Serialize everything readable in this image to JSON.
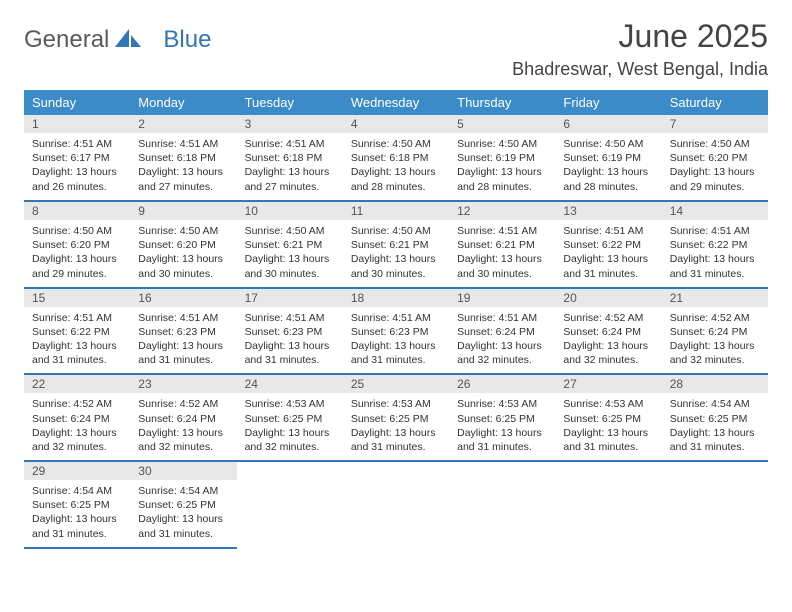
{
  "brand": {
    "part1": "General",
    "part2": "Blue"
  },
  "title": "June 2025",
  "location": "Bhadreswar, West Bengal, India",
  "colors": {
    "header_bg": "#3b8bc9",
    "header_text": "#ffffff",
    "border": "#2f77b5",
    "daynum_bg": "#e8e8e8",
    "brand_gray": "#5a5a5a",
    "brand_blue": "#2f77b5"
  },
  "weekdays": [
    "Sunday",
    "Monday",
    "Tuesday",
    "Wednesday",
    "Thursday",
    "Friday",
    "Saturday"
  ],
  "days": [
    {
      "n": 1,
      "sunrise": "4:51 AM",
      "sunset": "6:17 PM",
      "daylight": "13 hours and 26 minutes."
    },
    {
      "n": 2,
      "sunrise": "4:51 AM",
      "sunset": "6:18 PM",
      "daylight": "13 hours and 27 minutes."
    },
    {
      "n": 3,
      "sunrise": "4:51 AM",
      "sunset": "6:18 PM",
      "daylight": "13 hours and 27 minutes."
    },
    {
      "n": 4,
      "sunrise": "4:50 AM",
      "sunset": "6:18 PM",
      "daylight": "13 hours and 28 minutes."
    },
    {
      "n": 5,
      "sunrise": "4:50 AM",
      "sunset": "6:19 PM",
      "daylight": "13 hours and 28 minutes."
    },
    {
      "n": 6,
      "sunrise": "4:50 AM",
      "sunset": "6:19 PM",
      "daylight": "13 hours and 28 minutes."
    },
    {
      "n": 7,
      "sunrise": "4:50 AM",
      "sunset": "6:20 PM",
      "daylight": "13 hours and 29 minutes."
    },
    {
      "n": 8,
      "sunrise": "4:50 AM",
      "sunset": "6:20 PM",
      "daylight": "13 hours and 29 minutes."
    },
    {
      "n": 9,
      "sunrise": "4:50 AM",
      "sunset": "6:20 PM",
      "daylight": "13 hours and 30 minutes."
    },
    {
      "n": 10,
      "sunrise": "4:50 AM",
      "sunset": "6:21 PM",
      "daylight": "13 hours and 30 minutes."
    },
    {
      "n": 11,
      "sunrise": "4:50 AM",
      "sunset": "6:21 PM",
      "daylight": "13 hours and 30 minutes."
    },
    {
      "n": 12,
      "sunrise": "4:51 AM",
      "sunset": "6:21 PM",
      "daylight": "13 hours and 30 minutes."
    },
    {
      "n": 13,
      "sunrise": "4:51 AM",
      "sunset": "6:22 PM",
      "daylight": "13 hours and 31 minutes."
    },
    {
      "n": 14,
      "sunrise": "4:51 AM",
      "sunset": "6:22 PM",
      "daylight": "13 hours and 31 minutes."
    },
    {
      "n": 15,
      "sunrise": "4:51 AM",
      "sunset": "6:22 PM",
      "daylight": "13 hours and 31 minutes."
    },
    {
      "n": 16,
      "sunrise": "4:51 AM",
      "sunset": "6:23 PM",
      "daylight": "13 hours and 31 minutes."
    },
    {
      "n": 17,
      "sunrise": "4:51 AM",
      "sunset": "6:23 PM",
      "daylight": "13 hours and 31 minutes."
    },
    {
      "n": 18,
      "sunrise": "4:51 AM",
      "sunset": "6:23 PM",
      "daylight": "13 hours and 31 minutes."
    },
    {
      "n": 19,
      "sunrise": "4:51 AM",
      "sunset": "6:24 PM",
      "daylight": "13 hours and 32 minutes."
    },
    {
      "n": 20,
      "sunrise": "4:52 AM",
      "sunset": "6:24 PM",
      "daylight": "13 hours and 32 minutes."
    },
    {
      "n": 21,
      "sunrise": "4:52 AM",
      "sunset": "6:24 PM",
      "daylight": "13 hours and 32 minutes."
    },
    {
      "n": 22,
      "sunrise": "4:52 AM",
      "sunset": "6:24 PM",
      "daylight": "13 hours and 32 minutes."
    },
    {
      "n": 23,
      "sunrise": "4:52 AM",
      "sunset": "6:24 PM",
      "daylight": "13 hours and 32 minutes."
    },
    {
      "n": 24,
      "sunrise": "4:53 AM",
      "sunset": "6:25 PM",
      "daylight": "13 hours and 32 minutes."
    },
    {
      "n": 25,
      "sunrise": "4:53 AM",
      "sunset": "6:25 PM",
      "daylight": "13 hours and 31 minutes."
    },
    {
      "n": 26,
      "sunrise": "4:53 AM",
      "sunset": "6:25 PM",
      "daylight": "13 hours and 31 minutes."
    },
    {
      "n": 27,
      "sunrise": "4:53 AM",
      "sunset": "6:25 PM",
      "daylight": "13 hours and 31 minutes."
    },
    {
      "n": 28,
      "sunrise": "4:54 AM",
      "sunset": "6:25 PM",
      "daylight": "13 hours and 31 minutes."
    },
    {
      "n": 29,
      "sunrise": "4:54 AM",
      "sunset": "6:25 PM",
      "daylight": "13 hours and 31 minutes."
    },
    {
      "n": 30,
      "sunrise": "4:54 AM",
      "sunset": "6:25 PM",
      "daylight": "13 hours and 31 minutes."
    }
  ],
  "labels": {
    "sunrise": "Sunrise:",
    "sunset": "Sunset:",
    "daylight": "Daylight:"
  }
}
